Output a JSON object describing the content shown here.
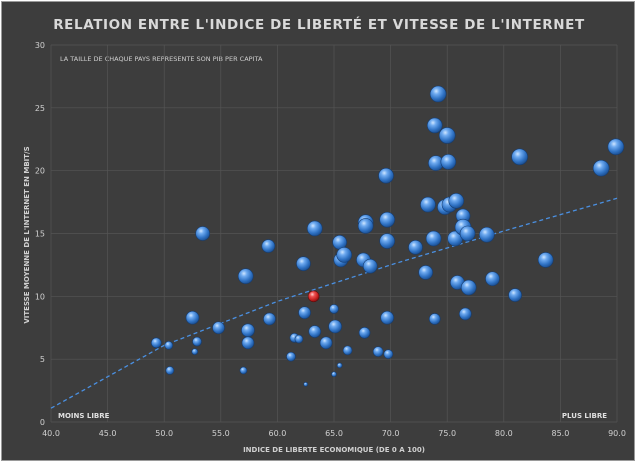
{
  "chart_data": {
    "type": "scatter",
    "title": "RELATION ENTRE L'INDICE DE LIBERTÉ ET VITESSE DE L'INTERNET",
    "subtitle": "LA TAILLE DE CHAQUE PAYS REPRESENTE SON PIB PER CAPITA",
    "xlabel": "INDICE DE LIBERTE ECONOMIQUE (DE 0 A 100)",
    "ylabel": "VITESSE MOYENNE DE L'INTERNET EN MBIT/S",
    "xlim": [
      40,
      90
    ],
    "ylim": [
      0,
      30
    ],
    "x_ticks": [
      "40.0",
      "45.0",
      "50.0",
      "55.0",
      "60.0",
      "65.0",
      "70.0",
      "75.0",
      "80.0",
      "85.0",
      "90.0"
    ],
    "y_ticks": [
      "0",
      "5",
      "10",
      "15",
      "20",
      "25",
      "30"
    ],
    "corner_labels": {
      "left": "MOINS LIBRE",
      "right": "PLUS LIBRE"
    },
    "grid": true,
    "trendline": {
      "style": "dashed",
      "type": "logarithmic",
      "points": [
        [
          40,
          1.1
        ],
        [
          50,
          6.1
        ],
        [
          60,
          9.6
        ],
        [
          70,
          12.5
        ],
        [
          80,
          15.2
        ],
        [
          90,
          17.8
        ]
      ]
    },
    "colors": {
      "bubble": "#3f86d8",
      "highlight": "#d42a2a",
      "trend": "#4a90e2",
      "background": "#3d3d3d"
    },
    "points": [
      {
        "x": 49.3,
        "y": 6.3,
        "size": 10,
        "highlight": false
      },
      {
        "x": 50.4,
        "y": 6.1,
        "size": 8,
        "highlight": false
      },
      {
        "x": 50.5,
        "y": 4.1,
        "size": 8,
        "highlight": false
      },
      {
        "x": 52.5,
        "y": 8.3,
        "size": 13,
        "highlight": false
      },
      {
        "x": 52.7,
        "y": 5.6,
        "size": 6,
        "highlight": false
      },
      {
        "x": 52.9,
        "y": 6.4,
        "size": 9,
        "highlight": false
      },
      {
        "x": 53.4,
        "y": 15.0,
        "size": 14,
        "highlight": false
      },
      {
        "x": 54.8,
        "y": 7.5,
        "size": 12,
        "highlight": false
      },
      {
        "x": 57.0,
        "y": 4.1,
        "size": 7,
        "highlight": false
      },
      {
        "x": 57.2,
        "y": 11.6,
        "size": 15,
        "highlight": false
      },
      {
        "x": 57.4,
        "y": 7.3,
        "size": 13,
        "highlight": false
      },
      {
        "x": 57.4,
        "y": 6.3,
        "size": 12,
        "highlight": false
      },
      {
        "x": 59.2,
        "y": 14.0,
        "size": 13,
        "highlight": false
      },
      {
        "x": 59.3,
        "y": 8.2,
        "size": 12,
        "highlight": false
      },
      {
        "x": 61.2,
        "y": 5.2,
        "size": 9,
        "highlight": false
      },
      {
        "x": 61.5,
        "y": 6.7,
        "size": 9,
        "highlight": false
      },
      {
        "x": 61.9,
        "y": 6.6,
        "size": 8,
        "highlight": false
      },
      {
        "x": 62.3,
        "y": 12.6,
        "size": 14,
        "highlight": false
      },
      {
        "x": 62.4,
        "y": 8.7,
        "size": 12,
        "highlight": false
      },
      {
        "x": 62.5,
        "y": 3.0,
        "size": 4,
        "highlight": false
      },
      {
        "x": 63.2,
        "y": 10.0,
        "size": 11,
        "highlight": true
      },
      {
        "x": 63.3,
        "y": 15.4,
        "size": 15,
        "highlight": false
      },
      {
        "x": 63.3,
        "y": 7.2,
        "size": 12,
        "highlight": false
      },
      {
        "x": 64.3,
        "y": 6.3,
        "size": 12,
        "highlight": false
      },
      {
        "x": 65.0,
        "y": 3.8,
        "size": 5,
        "highlight": false
      },
      {
        "x": 65.0,
        "y": 9.0,
        "size": 9,
        "highlight": false
      },
      {
        "x": 65.1,
        "y": 7.6,
        "size": 13,
        "highlight": false
      },
      {
        "x": 65.5,
        "y": 14.3,
        "size": 14,
        "highlight": false
      },
      {
        "x": 65.6,
        "y": 12.9,
        "size": 14,
        "highlight": false
      },
      {
        "x": 65.9,
        "y": 13.3,
        "size": 15,
        "highlight": false
      },
      {
        "x": 65.5,
        "y": 4.5,
        "size": 5,
        "highlight": false
      },
      {
        "x": 66.2,
        "y": 5.7,
        "size": 9,
        "highlight": false
      },
      {
        "x": 67.6,
        "y": 12.9,
        "size": 14,
        "highlight": false
      },
      {
        "x": 67.8,
        "y": 15.9,
        "size": 15,
        "highlight": false
      },
      {
        "x": 67.8,
        "y": 15.6,
        "size": 15,
        "highlight": false
      },
      {
        "x": 67.7,
        "y": 7.1,
        "size": 11,
        "highlight": false
      },
      {
        "x": 68.2,
        "y": 12.4,
        "size": 14,
        "highlight": false
      },
      {
        "x": 68.9,
        "y": 5.6,
        "size": 10,
        "highlight": false
      },
      {
        "x": 69.6,
        "y": 19.6,
        "size": 15,
        "highlight": false
      },
      {
        "x": 69.7,
        "y": 16.1,
        "size": 15,
        "highlight": false
      },
      {
        "x": 69.7,
        "y": 14.4,
        "size": 15,
        "highlight": false
      },
      {
        "x": 69.7,
        "y": 8.3,
        "size": 13,
        "highlight": false
      },
      {
        "x": 69.8,
        "y": 5.4,
        "size": 9,
        "highlight": false
      },
      {
        "x": 72.2,
        "y": 13.9,
        "size": 14,
        "highlight": false
      },
      {
        "x": 73.1,
        "y": 11.9,
        "size": 14,
        "highlight": false
      },
      {
        "x": 73.3,
        "y": 17.3,
        "size": 15,
        "highlight": false
      },
      {
        "x": 73.8,
        "y": 14.6,
        "size": 15,
        "highlight": false
      },
      {
        "x": 73.9,
        "y": 23.6,
        "size": 15,
        "highlight": false
      },
      {
        "x": 73.9,
        "y": 8.2,
        "size": 11,
        "highlight": false
      },
      {
        "x": 74.0,
        "y": 20.6,
        "size": 15,
        "highlight": false
      },
      {
        "x": 74.2,
        "y": 26.1,
        "size": 16,
        "highlight": false
      },
      {
        "x": 74.8,
        "y": 17.1,
        "size": 15,
        "highlight": false
      },
      {
        "x": 75.0,
        "y": 22.8,
        "size": 16,
        "highlight": false
      },
      {
        "x": 75.1,
        "y": 20.7,
        "size": 15,
        "highlight": false
      },
      {
        "x": 75.2,
        "y": 17.3,
        "size": 15,
        "highlight": false
      },
      {
        "x": 75.7,
        "y": 14.6,
        "size": 15,
        "highlight": false
      },
      {
        "x": 75.8,
        "y": 17.6,
        "size": 15,
        "highlight": false
      },
      {
        "x": 75.9,
        "y": 11.1,
        "size": 14,
        "highlight": false
      },
      {
        "x": 76.4,
        "y": 16.4,
        "size": 14,
        "highlight": false
      },
      {
        "x": 76.4,
        "y": 15.5,
        "size": 16,
        "highlight": false
      },
      {
        "x": 76.6,
        "y": 8.6,
        "size": 12,
        "highlight": false
      },
      {
        "x": 76.8,
        "y": 15.0,
        "size": 15,
        "highlight": false
      },
      {
        "x": 76.9,
        "y": 10.7,
        "size": 15,
        "highlight": false
      },
      {
        "x": 78.5,
        "y": 14.9,
        "size": 15,
        "highlight": false
      },
      {
        "x": 79.0,
        "y": 11.4,
        "size": 14,
        "highlight": false
      },
      {
        "x": 81.0,
        "y": 10.1,
        "size": 13,
        "highlight": false
      },
      {
        "x": 81.4,
        "y": 21.1,
        "size": 16,
        "highlight": false
      },
      {
        "x": 83.7,
        "y": 12.9,
        "size": 15,
        "highlight": false
      },
      {
        "x": 88.6,
        "y": 20.2,
        "size": 16,
        "highlight": false
      },
      {
        "x": 89.9,
        "y": 21.9,
        "size": 16,
        "highlight": false
      }
    ]
  }
}
